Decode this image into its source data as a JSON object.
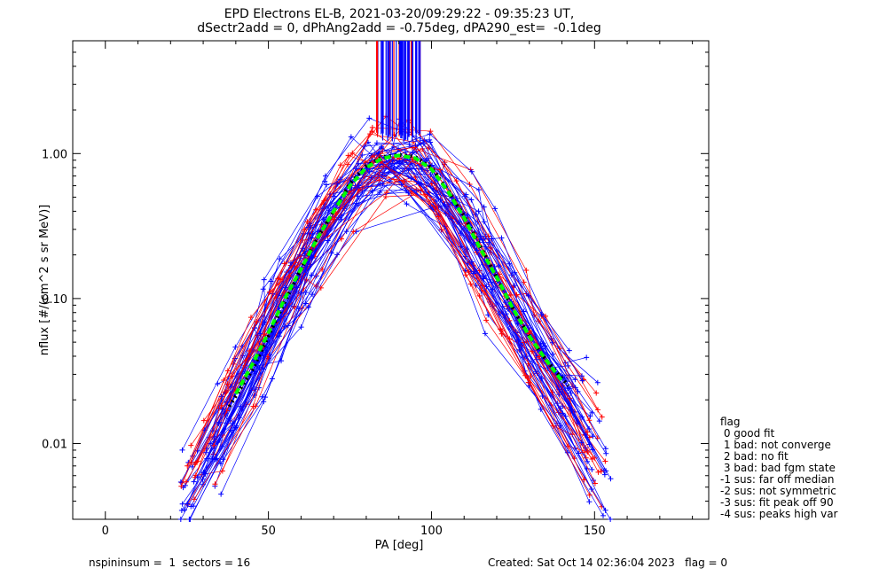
{
  "chart_data": {
    "type": "scatter",
    "title": "EPD Electrons EL-B, 2021-03-20/09:29:22 - 09:35:23 UT,",
    "subtitle": "dSectr2add = 0, dPhAng2add = -0.75deg, dPA290_est=  -0.1deg",
    "xlabel": "PA [deg]",
    "ylabel": "nflux [#/(cm^2 s sr MeV)]",
    "xlim": [
      -10,
      185
    ],
    "ylim": [
      0.003,
      6
    ],
    "yscale": "log",
    "x_ticks": [
      "0",
      "50",
      "100",
      "150"
    ],
    "y_ticks": [
      "0.01",
      "0.10",
      "1.00"
    ],
    "grid": false,
    "series": [
      {
        "color": "#0000ff",
        "style": "lines with + markers"
      },
      {
        "color": "#ff0000",
        "style": "lines with + markers"
      },
      {
        "color": "#00ff00",
        "style": "thick dashed",
        "x": [
          40,
          45,
          50,
          55,
          60,
          65,
          70,
          75,
          80,
          85,
          90,
          95,
          100,
          105,
          110,
          115,
          120,
          125,
          130,
          135,
          140
        ],
        "y": [
          0.022,
          0.035,
          0.058,
          0.1,
          0.16,
          0.26,
          0.4,
          0.6,
          0.8,
          0.93,
          0.97,
          0.93,
          0.78,
          0.55,
          0.36,
          0.22,
          0.14,
          0.085,
          0.055,
          0.038,
          0.027
        ]
      },
      {
        "color": "#000000",
        "style": "thick dotted",
        "x": [
          38,
          45,
          50,
          55,
          60,
          65,
          70,
          75,
          80,
          85,
          90,
          95,
          100,
          105,
          110,
          115,
          120,
          125,
          130,
          135,
          142
        ],
        "y": [
          0.018,
          0.032,
          0.055,
          0.095,
          0.16,
          0.26,
          0.4,
          0.62,
          0.82,
          0.95,
          0.98,
          0.95,
          0.8,
          0.56,
          0.37,
          0.23,
          0.14,
          0.085,
          0.055,
          0.038,
          0.025
        ]
      }
    ]
  },
  "legend": {
    "title": "flag",
    "items": [
      " 0 good fit",
      " 1 bad: not converge",
      " 2 bad: no fit",
      " 3 bad: bad fgm state",
      "-1 sus: far off median",
      "-2 sus: not symmetric",
      "-3 sus: fit peak off 90",
      "-4 sus: peaks high var"
    ]
  },
  "footer": {
    "left": "nspininsum =  1  sectors = 16",
    "right": "Created: Sat Oct 14 02:36:04 2023   flag = 0"
  }
}
